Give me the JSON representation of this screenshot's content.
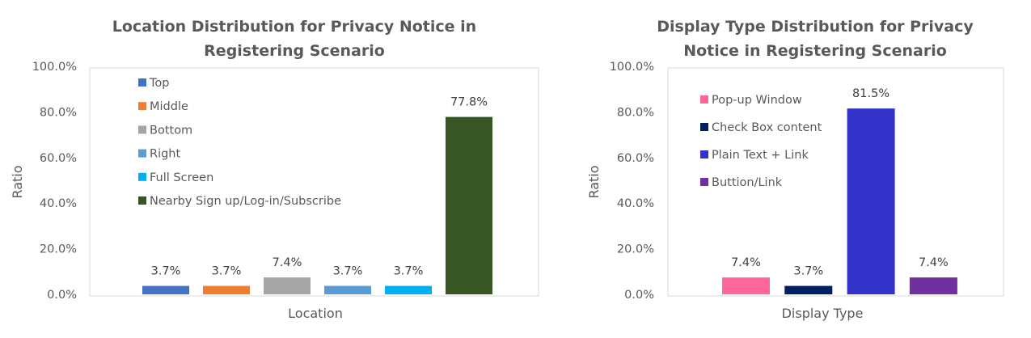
{
  "chart_data": [
    {
      "type": "bar",
      "title_lines": [
        "Location Distribution for Privacy Notice in",
        "Registering Scenario"
      ],
      "xlabel": "Location",
      "ylabel": "Ratio",
      "ylim": [
        0,
        100
      ],
      "y_ticks": [
        "0.0%",
        "20.0%",
        "40.0%",
        "60.0%",
        "80.0%",
        "100.0%"
      ],
      "grid": false,
      "legend_position": "top-left inside plot",
      "categories": [
        "Top",
        "Middle",
        "Bottom",
        "Right",
        "Full Screen",
        "Nearby Sign up/Log-in/Subscribe"
      ],
      "values": [
        3.7,
        3.7,
        7.4,
        3.7,
        3.7,
        77.8
      ],
      "value_labels": [
        "3.7%",
        "3.7%",
        "7.4%",
        "3.7%",
        "3.7%",
        "77.8%"
      ],
      "colors": [
        "#4472C4",
        "#ED7D31",
        "#A5A5A5",
        "#5B9BD5",
        "#00B0F0",
        "#375623"
      ]
    },
    {
      "type": "bar",
      "title_lines": [
        "Display Type Distribution for Privacy",
        "Notice in Registering Scenario"
      ],
      "xlabel": "Display Type",
      "ylabel": "Ratio",
      "ylim": [
        0,
        100
      ],
      "y_ticks": [
        "0.0%",
        "20.0%",
        "40.0%",
        "60.0%",
        "80.0%",
        "100.0%"
      ],
      "grid": false,
      "legend_position": "top-left inside plot",
      "categories": [
        "Pop-up Window",
        "Check Box content",
        "Plain Text + Link",
        "Buttion/Link"
      ],
      "values": [
        7.4,
        3.7,
        81.5,
        7.4
      ],
      "value_labels": [
        "7.4%",
        "3.7%",
        "81.5%",
        "7.4%"
      ],
      "colors": [
        "#FF6699",
        "#002060",
        "#3333CC",
        "#7030A0"
      ]
    }
  ]
}
